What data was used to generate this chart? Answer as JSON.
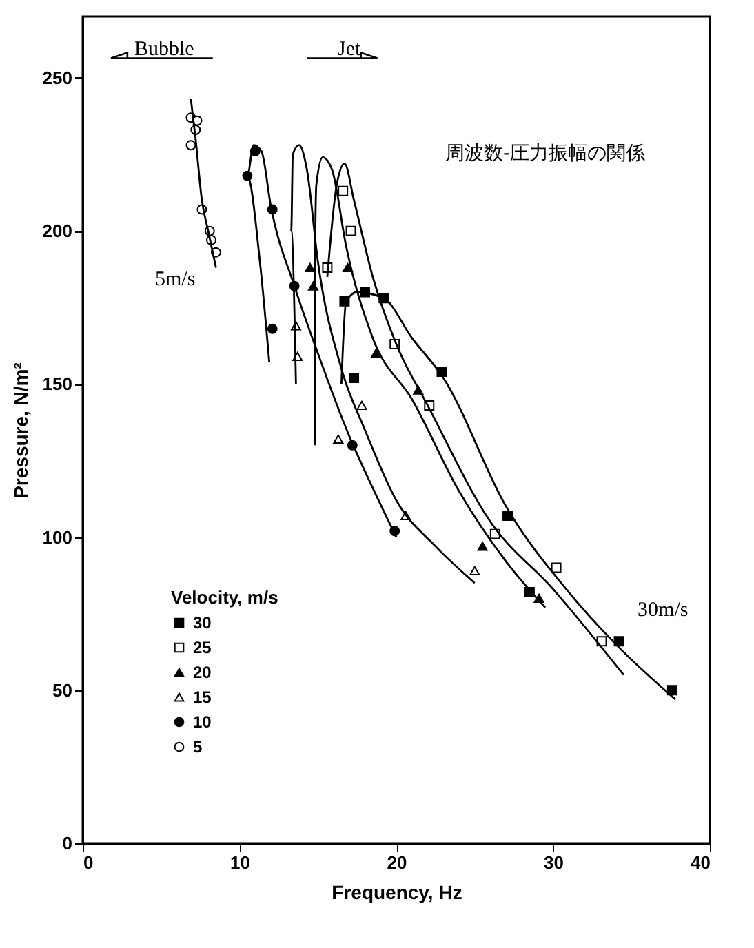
{
  "chart_data": {
    "type": "scatter",
    "xlabel": "Frequency, Hz",
    "ylabel": "Pressure, N/m²",
    "legend_title": "Velocity, m/s",
    "legend": "bottom left",
    "grid": false,
    "xlim": [
      0,
      40
    ],
    "xticks": [
      0,
      10,
      20,
      30,
      40
    ],
    "ylim": [
      0,
      270
    ],
    "yticks": [
      0,
      50,
      100,
      150,
      200,
      250
    ],
    "annotations": [
      "Bubble",
      "Jet",
      "周波数-圧力振幅の関係",
      "5m/s",
      "30m/s"
    ],
    "series": [
      {
        "name": "30",
        "color": "#000000",
        "marker": "square",
        "x": [
          16.7,
          18.0,
          19.2,
          22.9,
          17.3,
          27.1,
          28.5,
          34.2,
          37.6
        ],
        "values": [
          177,
          180,
          178,
          154,
          152,
          107,
          82,
          66,
          50
        ]
      },
      {
        "name": "25",
        "color": "#ffffff",
        "marker": "square",
        "x": [
          16.6,
          17.1,
          15.6,
          19.9,
          22.1,
          26.3,
          30.2,
          33.1
        ],
        "values": [
          213,
          200,
          188,
          163,
          143,
          101,
          90,
          66
        ]
      },
      {
        "name": "20",
        "color": "#000000",
        "marker": "triangle",
        "x": [
          14.5,
          14.7,
          16.9,
          18.7,
          21.4,
          25.5,
          29.1
        ],
        "values": [
          188,
          182,
          188,
          160,
          148,
          97,
          80
        ]
      },
      {
        "name": "15",
        "color": "#ffffff",
        "marker": "triangle",
        "x": [
          13.6,
          13.7,
          16.3,
          17.8,
          20.6,
          25.0
        ],
        "values": [
          169,
          159,
          132,
          143,
          107,
          89
        ]
      },
      {
        "name": "10",
        "color": "#000000",
        "marker": "circle",
        "x": [
          11.0,
          10.5,
          12.1,
          12.1,
          13.5,
          17.2,
          19.9
        ],
        "values": [
          226,
          218,
          207,
          168,
          182,
          130,
          102
        ]
      },
      {
        "name": "5",
        "color": "#ffffff",
        "marker": "circle",
        "x": [
          6.9,
          7.3,
          7.2,
          6.9,
          7.6,
          8.1,
          8.2,
          8.5
        ],
        "values": [
          237,
          236,
          233,
          228,
          207,
          200,
          197,
          193
        ]
      },
      {
        "type": "line",
        "color": "#000000",
        "marker": "none",
        "x": [
          6.9,
          7.2,
          7.6,
          8.0,
          8.5
        ],
        "values": [
          243,
          230,
          210,
          200,
          188
        ]
      },
      {
        "type": "line",
        "color": "#000000",
        "marker": "none",
        "x": [
          11.9,
          11.3,
          10.5,
          10.9,
          11.4,
          12.0,
          13.5,
          15.0,
          17.0,
          18.5,
          20.0
        ],
        "values": [
          157,
          190,
          218,
          228,
          226,
          208,
          182,
          160,
          133,
          116,
          100
        ]
      },
      {
        "type": "line",
        "color": "#000000",
        "marker": "none",
        "x": [
          13.6,
          13.3,
          13.4,
          13.8,
          14.3,
          15.0,
          16.5,
          18.0,
          20.0,
          22.5,
          25.0
        ],
        "values": [
          150,
          200,
          225,
          228,
          220,
          190,
          155,
          135,
          112,
          97,
          85
        ]
      },
      {
        "type": "line",
        "color": "#000000",
        "marker": "none",
        "x": [
          14.8,
          14.8,
          14.9,
          15.3,
          15.9,
          16.8,
          18.5,
          21.0,
          24.0,
          27.0,
          29.5
        ],
        "values": [
          130,
          180,
          215,
          224,
          220,
          195,
          165,
          145,
          115,
          92,
          77
        ]
      },
      {
        "type": "line",
        "color": "#000000",
        "marker": "none",
        "x": [
          15.6,
          16.2,
          16.7,
          17.3,
          18.5,
          20.0,
          22.0,
          26.0,
          30.0,
          34.5
        ],
        "values": [
          185,
          215,
          222,
          210,
          185,
          163,
          143,
          105,
          83,
          55
        ]
      },
      {
        "type": "line",
        "color": "#000000",
        "marker": "none",
        "x": [
          16.5,
          16.8,
          17.5,
          19.2,
          21.0,
          23.0,
          27.0,
          31.0,
          34.0,
          37.8
        ],
        "values": [
          150,
          177,
          180,
          178,
          165,
          152,
          110,
          82,
          65,
          47
        ]
      }
    ]
  }
}
